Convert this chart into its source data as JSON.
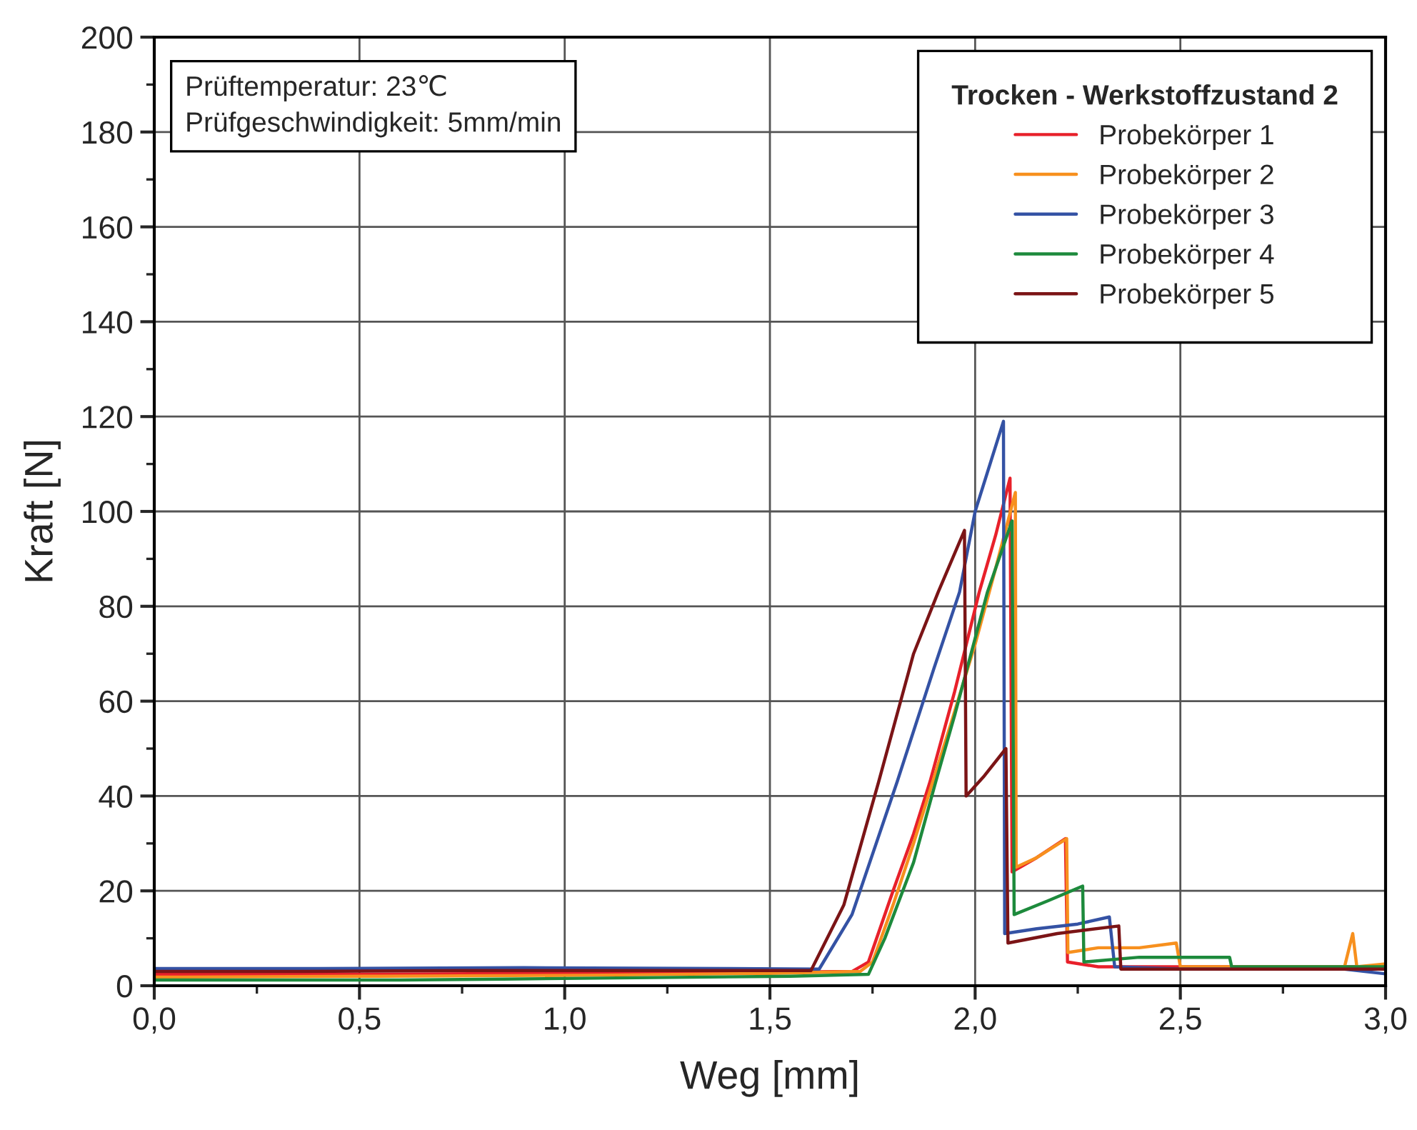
{
  "chart_data": {
    "type": "line",
    "xlabel": "Weg [mm]",
    "ylabel": "Kraft [N]",
    "legend_title": "Trocken - Werkstoffzustand 2",
    "legend": "top right",
    "grid": true,
    "marker": "none",
    "line_style": "solid",
    "xlim": [
      0,
      3
    ],
    "ylim": [
      0,
      200
    ],
    "xticks": [
      {
        "value": 0,
        "label": "0,0"
      },
      {
        "value": 0.5,
        "label": "0,5"
      },
      {
        "value": 1,
        "label": "1,0"
      },
      {
        "value": 1.5,
        "label": "1,5"
      },
      {
        "value": 2,
        "label": "2,0"
      },
      {
        "value": 2.5,
        "label": "2,5"
      },
      {
        "value": 3,
        "label": "3,0"
      }
    ],
    "yticks": [
      0,
      20,
      40,
      60,
      80,
      100,
      120,
      140,
      160,
      180,
      200
    ],
    "annotations": [
      "Prüftemperatur: 23℃",
      "Prüfgeschwindigkeit: 5mm/min"
    ],
    "series": [
      {
        "name": "Probekörper 1",
        "color": "#e8202a",
        "x": [
          0,
          0.45,
          0.95,
          1.45,
          1.7,
          1.74,
          1.8,
          1.85,
          1.89,
          1.95,
          2.01,
          2.05,
          2.085,
          2.09,
          2.15,
          2.22,
          2.225,
          2.3,
          3.0
        ],
        "values": [
          2.4,
          2.4,
          2.6,
          2.8,
          3,
          5,
          20,
          32,
          43,
          62,
          83,
          95,
          107,
          24,
          27,
          31,
          5,
          4,
          4
        ]
      },
      {
        "name": "Probekörper 2",
        "color": "#f7901e",
        "x": [
          0,
          0.55,
          1.05,
          1.5,
          1.72,
          1.75,
          1.8,
          1.85,
          1.94,
          2.0,
          2.05,
          2.098,
          2.1,
          2.15,
          2.223,
          2.226,
          2.3,
          2.4,
          2.49,
          2.5,
          2.9,
          2.92,
          2.93,
          3.0
        ],
        "values": [
          1.8,
          2,
          2.2,
          2.6,
          3,
          5,
          17,
          30,
          55,
          72,
          88,
          104,
          25,
          27,
          31,
          7,
          8,
          8,
          9,
          4,
          4,
          11,
          4,
          4.6
        ]
      },
      {
        "name": "Probekörper 3",
        "color": "#3452a4",
        "x": [
          0,
          0.4,
          0.9,
          1.4,
          1.62,
          1.7,
          1.81,
          1.9,
          1.962,
          2.0,
          2.069,
          2.072,
          2.15,
          2.25,
          2.327,
          2.34,
          2.5,
          2.9,
          3.0
        ],
        "values": [
          3.6,
          3.6,
          3.8,
          3.6,
          3.5,
          15,
          43,
          67,
          83,
          100,
          119,
          11,
          12,
          13,
          14.5,
          4,
          3.5,
          3.5,
          2.5
        ]
      },
      {
        "name": "Probekörper 4",
        "color": "#1d8a3c",
        "x": [
          0,
          0.6,
          0.85,
          1.55,
          1.74,
          1.78,
          1.85,
          1.904,
          1.95,
          2.03,
          2.09,
          2.095,
          2.18,
          2.262,
          2.265,
          2.4,
          2.62,
          2.625,
          3.0
        ],
        "values": [
          1.2,
          1.2,
          1.4,
          2,
          2.4,
          10,
          26,
          43,
          57,
          83,
          98,
          15,
          18,
          21,
          5,
          6,
          6,
          4,
          4
        ]
      },
      {
        "name": "Probekörper 5",
        "color": "#7b1416",
        "x": [
          0,
          0.35,
          0.75,
          1.35,
          1.6,
          1.68,
          1.765,
          1.85,
          1.91,
          1.974,
          1.978,
          2.02,
          2.075,
          2.08,
          2.2,
          2.35,
          2.355,
          2.6,
          3.0
        ],
        "values": [
          3,
          3,
          3.2,
          3.2,
          3.2,
          17,
          43,
          70,
          83,
          96,
          40,
          44,
          50,
          9,
          11,
          12.6,
          3.5,
          3.5,
          3.5
        ]
      }
    ]
  }
}
